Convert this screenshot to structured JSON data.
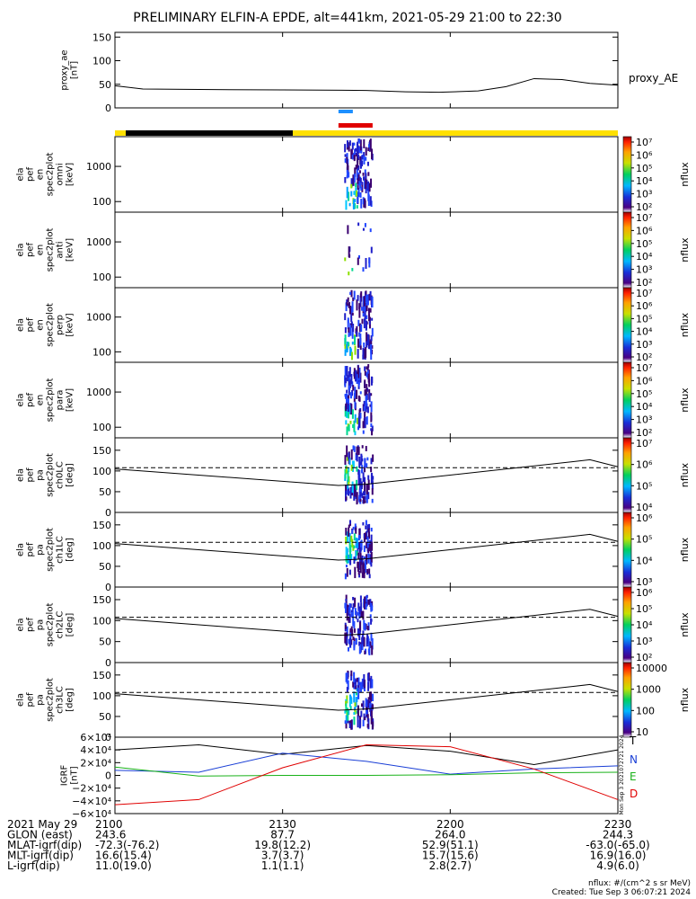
{
  "title": "PRELIMINARY ELFIN-A EPDE, alt=441km, 2021-05-29 21:00 to 22:30",
  "colors": {
    "black": "#000000",
    "yellow": "#ffe000",
    "red": "#e00000",
    "blue": "#1a3fd6",
    "green": "#19b219",
    "cyanbar": "#1e90ff"
  },
  "panels": {
    "proxy_ae": {
      "ylabel": [
        "proxy_ae",
        "[nT]"
      ],
      "ticks": [
        0,
        50,
        100,
        150
      ],
      "legend": "proxy_AE"
    },
    "en_omni": {
      "ylabel": [
        "ela",
        "pef",
        "en",
        "spec2plot",
        "omni",
        "[keV]"
      ],
      "ticks": [
        100,
        1000
      ]
    },
    "en_anti": {
      "ylabel": [
        "ela",
        "pef",
        "en",
        "spec2plot",
        "anti",
        "[keV]"
      ],
      "ticks": [
        100,
        1000
      ]
    },
    "en_perp": {
      "ylabel": [
        "ela",
        "pef",
        "en",
        "spec2plot",
        "perp",
        "[keV]"
      ],
      "ticks": [
        100,
        1000
      ]
    },
    "en_para": {
      "ylabel": [
        "ela",
        "pef",
        "en",
        "spec2plot",
        "para",
        "[keV]"
      ],
      "ticks": [
        100,
        1000
      ]
    },
    "pa_ch0": {
      "ylabel": [
        "ela",
        "pef",
        "pa",
        "spec2plot",
        "ch0LC",
        "[deg]"
      ],
      "ticks": [
        0,
        50,
        100,
        150
      ]
    },
    "pa_ch1": {
      "ylabel": [
        "ela",
        "pef",
        "pa",
        "spec2plot",
        "ch1LC",
        "[deg]"
      ],
      "ticks": [
        0,
        50,
        100,
        150
      ]
    },
    "pa_ch2": {
      "ylabel": [
        "ela",
        "pef",
        "pa",
        "spec2plot",
        "ch2LC",
        "[deg]"
      ],
      "ticks": [
        0,
        50,
        100,
        150
      ]
    },
    "pa_ch3": {
      "ylabel": [
        "ela",
        "pef",
        "pa",
        "spec2plot",
        "ch3LC",
        "[deg]"
      ],
      "ticks": [
        0,
        50,
        100,
        150
      ]
    },
    "igrf": {
      "ylabel": [
        "IGRF",
        "[nT]"
      ],
      "ticks": [
        "6×10⁴",
        "4×10⁴",
        "2×10⁴",
        "0",
        "−2×10⁴",
        "−4×10⁴",
        "−6×10⁴"
      ],
      "legend": [
        "T",
        "N",
        "E",
        "D"
      ],
      "side_text": "Mon Sep 3 2021072721 2024"
    }
  },
  "colorbars": [
    {
      "label": "nflux",
      "ticks": [
        "10⁷",
        "10⁶",
        "10⁵",
        "10⁴",
        "10³",
        "10²"
      ]
    },
    {
      "label": "nflux",
      "ticks": [
        "10⁷",
        "10⁶",
        "10⁵",
        "10⁴",
        "10³",
        "10²"
      ]
    },
    {
      "label": "nflux",
      "ticks": [
        "10⁷",
        "10⁶",
        "10⁵",
        "10⁴",
        "10³",
        "10²"
      ]
    },
    {
      "label": "nflux",
      "ticks": [
        "10⁷",
        "10⁶",
        "10⁵",
        "10⁴",
        "10³",
        "10²"
      ]
    },
    {
      "label": "nflux",
      "ticks": [
        "10⁷",
        "10⁶",
        "10⁵",
        "10⁴"
      ]
    },
    {
      "label": "nflux",
      "ticks": [
        "10⁶",
        "10⁵",
        "10⁴",
        "10³"
      ]
    },
    {
      "label": "nflux",
      "ticks": [
        "10⁶",
        "10⁵",
        "10⁴",
        "10³",
        "10²"
      ]
    },
    {
      "label": "nflux",
      "ticks": [
        "10000",
        "1000",
        "100",
        "10"
      ]
    }
  ],
  "time_axis": {
    "ticks": [
      "2100",
      "2130",
      "2200",
      "2230"
    ],
    "rows": [
      {
        "label": "2021 May 29",
        "values": [
          "2100",
          "2130",
          "2200",
          "2230"
        ]
      },
      {
        "label": "GLON (east)",
        "values": [
          "243.6",
          "87.7",
          "264.0",
          "244.3"
        ]
      },
      {
        "label": "MLAT-igrf(dip)",
        "values": [
          "-72.3(-76.2)",
          "19.8(12.2)",
          "52.9(51.1)",
          "-63.0(-65.0)"
        ]
      },
      {
        "label": "MLT-igrf(dip)",
        "values": [
          "16.6(15.4)",
          "3.7(3.7)",
          "15.7(15.6)",
          "16.9(16.0)"
        ]
      },
      {
        "label": "L-igrf(dip)",
        "values": [
          "11.0(19.0)",
          "1.1(1.1)",
          "2.8(2.7)",
          "4.9(6.0)"
        ]
      }
    ]
  },
  "footer": {
    "units": "nflux: #/(cm^2 s sr MeV)",
    "created": "Created: Tue Sep  3 06:07:21 2024"
  },
  "chart_data": {
    "type": "line",
    "title": "PRELIMINARY ELFIN-A EPDE, alt=441km, 2021-05-29 21:00 to 22:30",
    "x_unit": "UT (HHMM)",
    "x_range": [
      "2100",
      "2230"
    ],
    "proxy_ae": {
      "x": [
        "2100",
        "2105",
        "2115",
        "2130",
        "2145",
        "2152",
        "2158",
        "2205",
        "2210",
        "2215",
        "2220",
        "2225",
        "2230"
      ],
      "values": [
        47,
        40,
        39,
        38,
        37,
        34,
        33,
        36,
        45,
        62,
        60,
        52,
        48
      ],
      "ylim": [
        0,
        150
      ]
    },
    "igrf": {
      "x": [
        "2100",
        "2115",
        "2130",
        "2145",
        "2200",
        "2215",
        "2230"
      ],
      "series": [
        {
          "name": "T",
          "values": [
            40000,
            48000,
            33000,
            47000,
            38000,
            17000,
            40000
          ]
        },
        {
          "name": "N",
          "values": [
            8000,
            5000,
            35000,
            22000,
            2000,
            10000,
            15000
          ]
        },
        {
          "name": "E",
          "values": [
            13000,
            -1000,
            0,
            0,
            1000,
            4000,
            5000
          ]
        },
        {
          "name": "D",
          "values": [
            -46000,
            -38000,
            12000,
            48000,
            45000,
            10000,
            -38000
          ]
        }
      ],
      "ylim": [
        -60000,
        60000
      ]
    },
    "pa_loss_cone": {
      "x": [
        "2100",
        "2140",
        "2145",
        "2225",
        "2230"
      ],
      "solid": [
        105,
        65,
        68,
        127,
        110
      ],
      "dashed": [
        108,
        108,
        108,
        108,
        108
      ],
      "ylim": [
        0,
        180
      ]
    },
    "energy_ylim": [
      50,
      7000
    ],
    "flux_burst": {
      "start": "2141",
      "end": "2146"
    }
  }
}
